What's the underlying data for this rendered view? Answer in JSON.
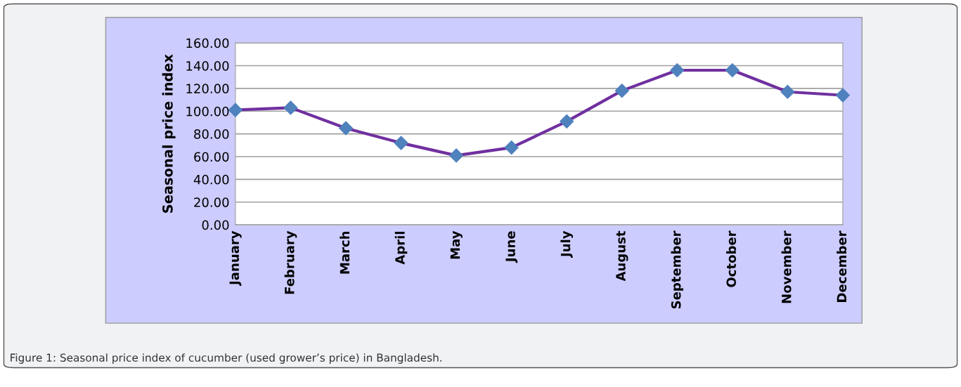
{
  "chart_data": {
    "type": "line",
    "ylabel": "Seasonal price index",
    "categories": [
      "January",
      "February",
      "March",
      "April",
      "May",
      "June",
      "July",
      "August",
      "September",
      "October",
      "November",
      "December"
    ],
    "series": [
      {
        "color": "#7030a0",
        "colors": [
          "#4f81bd",
          "#4f81bd",
          "#4f81bd",
          "#4f81bd",
          "#4f81bd",
          "#4f81bd",
          "#4f81bd",
          "#4f81bd",
          "#4f81bd",
          "#4f81bd",
          "#4f81bd",
          "#4f81bd"
        ],
        "values": [
          101,
          103,
          85,
          72,
          61,
          68,
          91,
          118,
          136,
          136,
          117,
          114
        ]
      }
    ],
    "ylim": [
      0,
      160
    ],
    "yticks": [
      {
        "value": 0,
        "label": "0.00"
      },
      {
        "value": 20,
        "label": "20.00"
      },
      {
        "value": 40,
        "label": "40.00"
      },
      {
        "value": 60,
        "label": "60.00"
      },
      {
        "value": 80,
        "label": "80.00"
      },
      {
        "value": 100,
        "label": "100.00"
      },
      {
        "value": 120,
        "label": "120.00"
      },
      {
        "value": 140,
        "label": "140.00"
      },
      {
        "value": 160,
        "label": "160.00"
      }
    ],
    "grid": "y",
    "marker": "diamond",
    "line_style": "solid",
    "legend": false,
    "annotations": [
      "Figure 1: Seasonal price index of cucumber (used grower’s price) in Bangladesh."
    ]
  }
}
